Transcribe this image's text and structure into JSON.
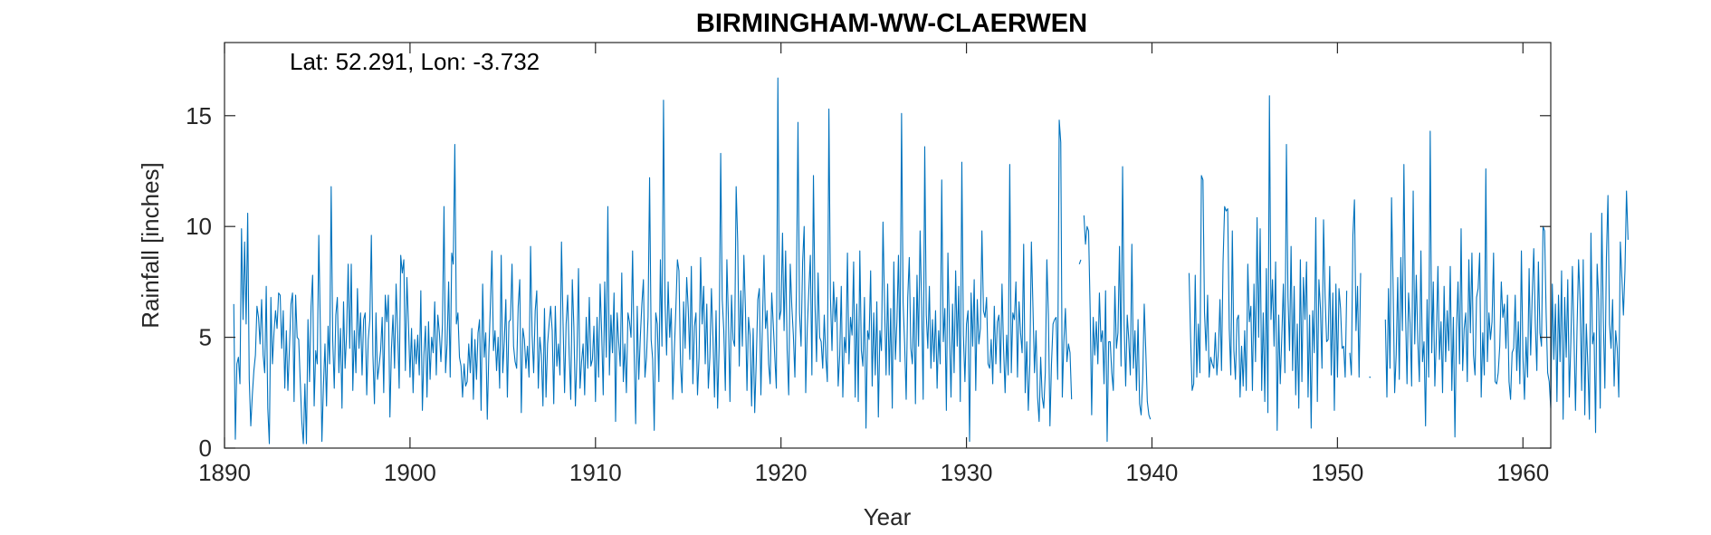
{
  "chart_data": {
    "type": "line",
    "title": "BIRMINGHAM-WW-CLAERWEN",
    "annotation": "Lat: 52.291, Lon: -3.732",
    "xlabel": "Year",
    "ylabel": "Rainfall [inches]",
    "xlim": [
      1890,
      1961.5
    ],
    "ylim": [
      0,
      18.3
    ],
    "xticks": [
      1890,
      1900,
      1910,
      1920,
      1930,
      1940,
      1950,
      1960
    ],
    "yticks": [
      0,
      5,
      10,
      15
    ],
    "grid": false,
    "line_color": "#0072BD",
    "series": [
      {
        "start": 1890.5,
        "step": 0.0833333,
        "values": [
          6.5,
          0.4,
          3.8,
          4.1,
          2.9,
          9.9,
          5.8,
          9.3,
          5.6,
          10.6,
          3.1,
          1.0,
          2.4,
          3.5,
          4.2,
          6.4,
          5.9,
          4.7,
          6.7,
          4.2,
          3.4,
          7.3,
          1.8,
          0.2,
          6.8,
          3.8,
          5.2,
          6.2,
          5.4,
          7.0,
          6.9,
          4.5,
          6.2,
          2.7,
          5.3,
          2.6,
          4.5,
          6.5,
          7.0,
          2.1,
          6.9,
          5.0,
          4.9,
          3.0,
          1.2,
          0.2,
          2.9,
          0.2,
          5.8,
          3.0,
          6.4,
          7.8,
          1.9,
          4.4,
          3.8,
          9.6,
          5.4,
          0.3,
          2.8,
          4.7,
          1.9,
          5.5,
          3.8,
          11.8,
          4.9,
          2.7,
          6.0,
          6.8,
          3.4,
          5.4,
          1.8,
          6.6,
          3.6,
          5.2,
          8.3,
          4.5,
          8.3,
          2.6,
          5.3,
          3.4,
          7.2,
          4.5,
          6.1,
          3.3,
          5.8,
          6.1,
          2.4,
          4.9,
          5.8,
          9.6,
          4.2,
          2.0,
          6.1,
          3.1,
          3.7,
          4.4,
          5.9,
          2.5,
          6.9,
          5.7,
          6.9,
          1.4,
          4.5,
          6.0,
          3.6,
          7.4,
          5.3,
          2.7,
          8.7,
          7.9,
          8.5,
          3.5,
          7.7,
          5.6,
          3.2,
          5.4,
          2.5,
          4.9,
          3.8,
          5.1,
          3.3,
          7.1,
          1.7,
          4.2,
          5.5,
          2.3,
          5.7,
          3.1,
          5.0,
          4.3,
          6.6,
          3.3,
          6.0,
          5.2,
          3.9,
          5.6,
          10.9,
          3.4,
          4.7,
          7.5,
          3.2,
          8.8,
          8.3,
          13.7,
          5.6,
          6.1,
          4.1,
          3.7,
          2.3,
          3.8,
          2.8,
          3.0,
          4.7,
          3.4,
          5.4,
          2.2,
          4.9,
          3.1,
          5.2,
          5.8,
          1.7,
          7.4,
          4.1,
          5.2,
          1.3,
          4.3,
          6.4,
          8.9,
          4.4,
          5.3,
          3.5,
          5.0,
          2.7,
          8.7,
          3.4,
          4.8,
          6.7,
          2.3,
          5.7,
          5.8,
          8.3,
          4.6,
          3.9,
          3.6,
          6.4,
          7.6,
          1.6,
          5.4,
          4.9,
          3.6,
          4.6,
          3.2,
          9.1,
          5.1,
          3.4,
          6.2,
          7.1,
          2.7,
          5.0,
          4.2,
          1.9,
          6.3,
          2.3,
          4.7,
          5.6,
          6.4,
          5.3,
          2.0,
          6.4,
          3.7,
          4.7,
          3.3,
          9.3,
          5.7,
          2.5,
          5.6,
          6.9,
          4.2,
          2.2,
          7.6,
          5.5,
          1.9,
          4.1,
          8.1,
          2.7,
          3.9,
          4.7,
          2.4,
          5.9,
          3.6,
          6.8,
          3.7,
          4.0,
          5.5,
          2.1,
          5.9,
          3.2,
          7.4,
          5.2,
          2.4,
          7.5,
          4.1,
          10.9,
          3.3,
          6.0,
          4.3,
          7.0,
          1.2,
          6.1,
          4.8,
          3.7,
          7.9,
          3.0,
          4.7,
          2.5,
          6.1,
          5.7,
          5.0,
          8.9,
          4.3,
          1.1,
          6.4,
          3.1,
          5.0,
          6.5,
          7.6,
          3.2,
          4.1,
          5.9,
          12.2,
          4.9,
          4.0,
          0.8,
          6.1,
          5.6,
          3.0,
          8.5,
          4.6,
          15.7,
          6.6,
          4.2,
          7.5,
          5.0,
          6.3,
          2.2,
          4.4,
          6.3,
          8.5,
          8.0,
          3.8,
          2.5,
          6.6,
          4.5,
          7.7,
          6.3,
          4.0,
          8.2,
          2.9,
          5.5,
          6.1,
          2.4,
          4.1,
          8.6,
          5.6,
          7.3,
          3.8,
          6.5,
          2.7,
          4.1,
          7.2,
          5.0,
          2.3,
          6.2,
          1.8,
          4.6,
          13.3,
          6.7,
          5.3,
          2.6,
          8.5,
          5.8,
          2.1,
          6.9,
          4.9,
          4.6,
          11.8,
          9.3,
          3.7,
          7.1,
          4.6,
          8.7,
          6.3,
          2.6,
          5.9,
          5.1,
          1.9,
          5.4,
          1.6,
          3.9,
          6.7,
          7.2,
          2.4,
          5.6,
          8.7,
          5.4,
          6.2,
          3.8,
          2.9,
          7.0,
          5.6,
          4.1,
          2.7,
          16.7,
          5.8,
          6.2,
          9.7,
          5.3,
          8.9,
          4.4,
          2.4,
          8.3,
          6.4,
          5.1,
          3.2,
          7.2,
          14.7,
          6.1,
          4.6,
          8.4,
          10.0,
          2.5,
          5.4,
          7.1,
          8.7,
          3.3,
          12.3,
          6.5,
          3.9,
          7.9,
          5.0,
          4.8,
          3.6,
          6.0,
          4.1,
          3.0,
          15.3,
          6.8,
          4.4,
          7.5,
          5.7,
          6.8,
          2.8,
          4.2,
          7.3,
          2.3,
          5.0,
          4.3,
          8.8,
          3.8,
          5.9,
          5.1,
          8.4,
          2.3,
          6.5,
          2.1,
          8.9,
          4.4,
          3.7,
          6.8,
          0.9,
          5.3,
          4.9,
          8.0,
          2.8,
          6.1,
          3.3,
          6.6,
          1.4,
          5.3,
          4.4,
          10.2,
          6.5,
          3.3,
          7.4,
          3.3,
          6.3,
          1.8,
          8.4,
          4.0,
          5.7,
          8.7,
          3.9,
          15.1,
          6.6,
          4.7,
          2.2,
          6.8,
          8.6,
          4.5,
          3.8,
          6.8,
          2.0,
          7.8,
          4.6,
          9.8,
          6.4,
          2.2,
          13.6,
          6.0,
          4.5,
          7.3,
          3.6,
          5.8,
          3.9,
          6.2,
          2.7,
          5.3,
          3.8,
          12.1,
          4.8,
          6.3,
          1.7,
          8.8,
          5.2,
          2.3,
          6.5,
          3.4,
          8.0,
          4.6,
          7.3,
          2.1,
          12.9,
          5.1,
          3.0,
          5.6,
          6.2,
          0.3,
          7.0,
          4.6,
          7.6,
          2.6,
          6.7,
          4.7,
          5.4,
          9.8,
          6.2,
          5.9,
          6.8,
          3.8,
          3.6,
          4.9,
          2.9,
          6.4,
          3.8,
          5.7,
          6.0,
          3.4,
          7.4,
          4.5,
          2.5,
          5.1,
          3.3,
          12.8,
          3.4,
          6.1,
          5.8,
          7.5,
          3.2,
          6.6,
          5.2,
          4.3,
          9.2,
          2.5,
          4.8,
          1.7,
          3.8,
          9.3,
          6.4,
          3.4,
          5.3,
          2.3,
          1.2,
          4.1,
          2.3,
          1.8,
          3.4,
          8.5,
          6.0,
          1.0,
          3.8,
          5.6,
          5.8,
          5.9,
          3.1,
          14.8,
          13.8,
          2.3,
          4.8,
          6.3,
          3.9,
          4.7,
          4.3,
          2.2,
          null,
          null,
          null,
          null,
          8.3,
          8.5,
          null,
          10.5,
          9.2,
          10.0,
          9.8,
          6.3,
          1.5,
          5.9,
          4.2,
          5.7,
          3.8,
          7.0,
          4.8,
          5.3,
          2.9,
          7.1,
          0.3,
          4.8,
          4.8,
          3.4,
          2.6,
          7.3,
          4.5,
          5.2,
          9.1,
          3.7,
          12.7,
          5.6,
          2.8,
          6.0,
          4.9,
          3.3,
          9.2,
          3.6,
          5.3,
          2.6,
          5.8,
          2.0,
          1.5,
          3.1,
          6.5,
          4.4,
          2.1,
          1.5,
          1.3,
          null,
          null,
          null,
          null,
          null,
          null,
          null,
          null,
          null,
          null,
          null,
          null,
          null,
          null,
          null,
          null,
          null,
          null,
          null,
          null,
          null,
          null,
          null,
          null,
          7.9,
          5.0,
          2.6,
          2.9,
          7.8,
          3.2,
          5.6,
          3.4,
          12.3,
          12.1,
          6.1,
          4.4,
          6.9,
          3.2,
          4.1,
          3.8,
          3.6,
          5.2,
          3.3,
          4.4,
          6.7,
          3.5,
          8.4,
          10.9,
          10.7,
          10.8,
          5.4,
          3.3,
          9.8,
          4.4,
          3.1,
          5.8,
          6.0,
          2.3,
          4.6,
          2.8,
          5.3,
          2.6,
          8.3,
          5.7,
          6.4,
          2.6,
          7.4,
          3.9,
          10.4,
          5.0,
          9.9,
          2.6,
          6.1,
          2.1,
          8.1,
          1.6,
          15.9,
          5.8,
          7.6,
          4.6,
          8.4,
          0.8,
          6.0,
          2.9,
          5.0,
          7.4,
          3.4,
          13.7,
          6.8,
          4.4,
          9.1,
          3.5,
          7.3,
          2.4,
          5.6,
          1.8,
          8.5,
          3.0,
          7.7,
          5.8,
          8.4,
          2.3,
          6.0,
          0.9,
          6.2,
          4.3,
          10.4,
          2.1,
          7.6,
          6.3,
          3.6,
          10.3,
          6.9,
          4.8,
          4.9,
          8.2,
          3.3,
          7.0,
          1.7,
          7.4,
          3.2,
          7.2,
          6.3,
          4.5,
          4.6,
          3.2,
          7.1,
          null,
          4.3,
          3.3,
          9.6,
          11.2,
          5.3,
          7.3,
          3.2,
          7.9,
          null,
          null,
          null,
          null,
          null,
          3.2,
          null,
          null,
          null,
          null,
          null,
          null,
          null,
          null,
          null,
          5.8,
          2.3,
          7.2,
          3.6,
          11.3,
          7.3,
          2.5,
          4.2,
          7.7,
          3.1,
          8.6,
          5.3,
          12.8,
          6.3,
          2.9,
          7.0,
          5.6,
          2.8,
          11.6,
          4.7,
          7.8,
          4.8,
          3.0,
          8.9,
          3.9,
          4.8,
          1.0,
          6.7,
          3.2,
          14.3,
          4.3,
          7.5,
          2.8,
          5.0,
          8.2,
          4.0,
          5.7,
          2.5,
          7.3,
          3.9,
          6.2,
          4.4,
          8.2,
          2.6,
          5.9,
          0.5,
          5.3,
          7.5,
          3.8,
          9.9,
          3.5,
          5.4,
          6.1,
          3.0,
          8.5,
          5.2,
          8.8,
          4.2,
          3.3,
          6.8,
          7.2,
          8.8,
          2.3,
          5.2,
          3.3,
          12.6,
          3.9,
          6.1,
          4.9,
          5.7,
          8.8,
          3.0,
          2.9,
          3.4,
          4.6,
          7.5,
          5.9,
          6.5,
          4.5,
          6.9,
          3.0,
          2.2,
          4.3,
          4.5,
          6.9,
          3.5,
          5.7,
          2.9,
          8.9,
          4.1,
          2.2,
          5.0,
          3.2,
          8.1,
          4.2,
          6.9,
          9.0,
          5.6,
          3.5,
          8.4,
          5.2,
          4.6,
          10.0,
          9.8,
          6.1,
          3.4,
          3.0,
          1.8,
          7.4,
          4.0,
          6.5,
          2.1,
          6.9,
          3.9,
          8.0,
          1.3,
          6.8,
          4.1,
          7.6,
          2.3,
          4.8,
          8.2,
          5.1,
          1.7,
          5.4,
          8.5,
          6.6,
          2.6,
          8.5,
          1.5,
          5.6,
          3.7,
          1.3,
          9.7,
          4.7,
          5.2,
          0.7,
          8.3,
          6.7,
          1.8,
          10.6,
          5.8,
          2.7,
          8.6,
          11.4,
          5.6,
          4.5,
          6.7,
          2.8,
          5.3,
          4.5,
          2.3,
          9.3,
          7.7,
          6.0,
          8.0,
          11.6,
          9.4
        ]
      }
    ]
  }
}
